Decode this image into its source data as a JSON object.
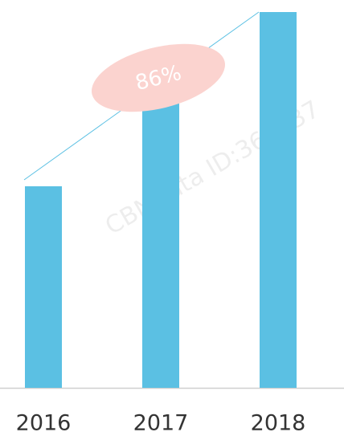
{
  "chart_data": {
    "type": "bar",
    "categories": [
      "2016",
      "2017",
      "2018"
    ],
    "values": [
      251,
      355,
      468
    ],
    "color": "#5bc0e3",
    "ylim": [
      0,
      468
    ],
    "annotation": "86%",
    "watermark": "CBNData ID:363137"
  }
}
